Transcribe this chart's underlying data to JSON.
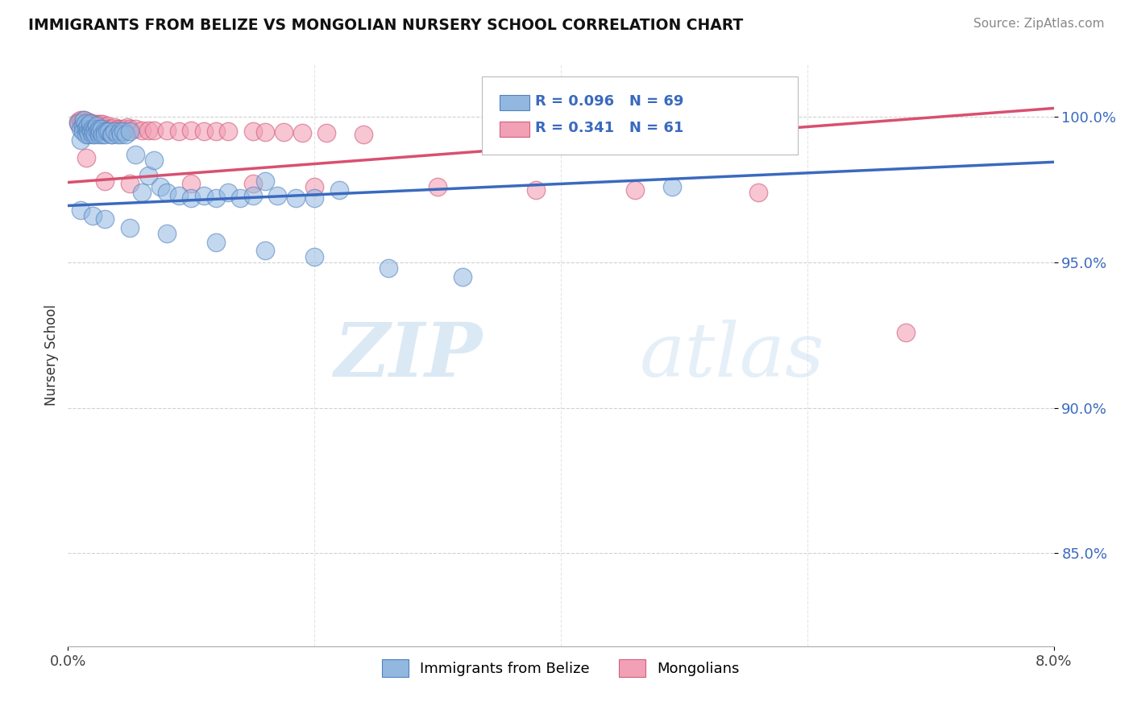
{
  "title": "IMMIGRANTS FROM BELIZE VS MONGOLIAN NURSERY SCHOOL CORRELATION CHART",
  "source": "Source: ZipAtlas.com",
  "ylabel": "Nursery School",
  "ytick_labels": [
    "100.0%",
    "95.0%",
    "90.0%",
    "85.0%"
  ],
  "ytick_values": [
    1.0,
    0.95,
    0.9,
    0.85
  ],
  "xlim": [
    0.0,
    0.08
  ],
  "ylim": [
    0.818,
    1.018
  ],
  "legend_blue_r": "R = 0.096",
  "legend_blue_n": "N = 69",
  "legend_pink_r": "R = 0.341",
  "legend_pink_n": "N = 61",
  "label_blue": "Immigrants from Belize",
  "label_pink": "Mongolians",
  "blue_color": "#92b8e0",
  "pink_color": "#f2a0b5",
  "blue_edge_color": "#5080c0",
  "pink_edge_color": "#d06080",
  "blue_line_color": "#3a6abf",
  "pink_line_color": "#d85070",
  "watermark_zip": "ZIP",
  "watermark_atlas": "atlas",
  "blue_line_x0": 0.0,
  "blue_line_x1": 0.08,
  "blue_line_y0": 0.9695,
  "blue_line_y1": 0.9845,
  "pink_line_x0": 0.0,
  "pink_line_x1": 0.08,
  "pink_line_y0": 0.9775,
  "pink_line_y1": 1.003,
  "blue_scatter_x": [
    0.0008,
    0.001,
    0.001,
    0.0012,
    0.0012,
    0.0013,
    0.0014,
    0.0015,
    0.0015,
    0.0016,
    0.0016,
    0.0017,
    0.0018,
    0.0018,
    0.0019,
    0.002,
    0.002,
    0.0021,
    0.0022,
    0.0022,
    0.0023,
    0.0024,
    0.0025,
    0.0025,
    0.0026,
    0.0027,
    0.0028,
    0.003,
    0.003,
    0.0032,
    0.0033,
    0.0035,
    0.0036,
    0.0038,
    0.004,
    0.0042,
    0.0043,
    0.0045,
    0.0047,
    0.005,
    0.0055,
    0.006,
    0.0065,
    0.007,
    0.0075,
    0.008,
    0.009,
    0.01,
    0.011,
    0.012,
    0.013,
    0.014,
    0.015,
    0.016,
    0.017,
    0.0185,
    0.02,
    0.022,
    0.001,
    0.002,
    0.003,
    0.005,
    0.008,
    0.012,
    0.016,
    0.02,
    0.026,
    0.032,
    0.049
  ],
  "blue_scatter_y": [
    0.998,
    0.996,
    0.992,
    0.997,
    0.995,
    0.999,
    0.998,
    0.996,
    0.994,
    0.997,
    0.995,
    0.994,
    0.996,
    0.998,
    0.995,
    0.996,
    0.994,
    0.995,
    0.996,
    0.994,
    0.997,
    0.995,
    0.994,
    0.996,
    0.995,
    0.996,
    0.994,
    0.995,
    0.994,
    0.995,
    0.995,
    0.994,
    0.994,
    0.995,
    0.994,
    0.995,
    0.994,
    0.995,
    0.994,
    0.995,
    0.987,
    0.974,
    0.98,
    0.985,
    0.976,
    0.974,
    0.973,
    0.972,
    0.973,
    0.972,
    0.974,
    0.972,
    0.973,
    0.978,
    0.973,
    0.972,
    0.972,
    0.975,
    0.968,
    0.966,
    0.965,
    0.962,
    0.96,
    0.957,
    0.954,
    0.952,
    0.948,
    0.945,
    0.976
  ],
  "pink_scatter_x": [
    0.0008,
    0.0009,
    0.001,
    0.0011,
    0.0012,
    0.0012,
    0.0013,
    0.0014,
    0.0015,
    0.0016,
    0.0017,
    0.0018,
    0.0019,
    0.002,
    0.002,
    0.0021,
    0.0022,
    0.0023,
    0.0024,
    0.0025,
    0.0025,
    0.0026,
    0.0027,
    0.0028,
    0.003,
    0.0032,
    0.0033,
    0.0035,
    0.0038,
    0.004,
    0.0042,
    0.0045,
    0.0048,
    0.005,
    0.0055,
    0.006,
    0.0065,
    0.007,
    0.008,
    0.009,
    0.01,
    0.011,
    0.012,
    0.013,
    0.015,
    0.016,
    0.0175,
    0.019,
    0.021,
    0.024,
    0.0015,
    0.003,
    0.005,
    0.01,
    0.015,
    0.02,
    0.03,
    0.038,
    0.046,
    0.056,
    0.068
  ],
  "pink_scatter_y": [
    0.9985,
    0.9975,
    0.999,
    0.998,
    0.9975,
    0.9985,
    0.999,
    0.998,
    0.9975,
    0.9985,
    0.9975,
    0.997,
    0.998,
    0.997,
    0.9975,
    0.997,
    0.9975,
    0.9965,
    0.9975,
    0.997,
    0.9965,
    0.9975,
    0.9965,
    0.9975,
    0.9965,
    0.997,
    0.996,
    0.996,
    0.9965,
    0.996,
    0.996,
    0.996,
    0.9965,
    0.996,
    0.996,
    0.9955,
    0.9955,
    0.9955,
    0.9955,
    0.995,
    0.9955,
    0.995,
    0.995,
    0.995,
    0.995,
    0.9948,
    0.9948,
    0.9945,
    0.9945,
    0.994,
    0.986,
    0.978,
    0.977,
    0.977,
    0.977,
    0.976,
    0.976,
    0.975,
    0.975,
    0.974,
    0.926
  ]
}
